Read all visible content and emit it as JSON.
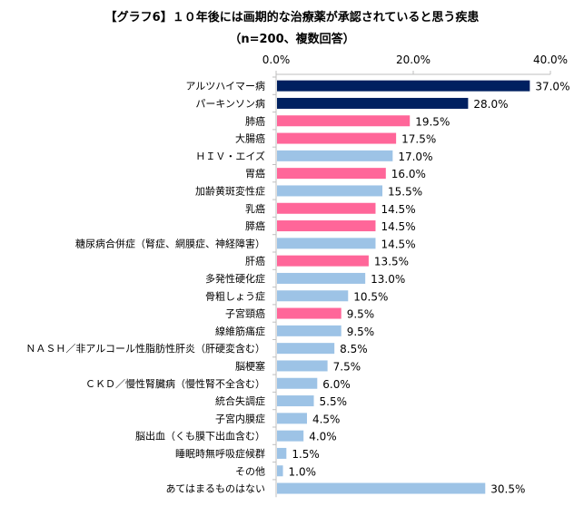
{
  "title_line1": "【グラフ6】１０年後には画期的な治療薬が承認されていると思う疾患",
  "title_line2": "（n=200、複数回答）",
  "colors": {
    "top": "#002060",
    "pink": "#FF6699",
    "blue": "#9DC3E6"
  },
  "chart_data": {
    "type": "bar",
    "orientation": "horizontal",
    "xlim": [
      0,
      40
    ],
    "xticks": [
      "0.0%",
      "20.0%",
      "40.0%"
    ],
    "xtick_values": [
      0,
      20,
      40
    ],
    "grid": false,
    "categories": [
      "アルツハイマー病",
      "パーキンソン病",
      "肺癌",
      "大腸癌",
      "ＨＩＶ・エイズ",
      "胃癌",
      "加齢黄斑変性症",
      "乳癌",
      "膵癌",
      "糖尿病合併症（腎症、網膜症、神経障害）",
      "肝癌",
      "多発性硬化症",
      "骨粗しょう症",
      "子宮頸癌",
      "線維筋痛症",
      "ＮＡＳＨ／非アルコール性脂肪性肝炎（肝硬変含む）",
      "脳梗塞",
      "ＣＫＤ／慢性腎臓病（慢性腎不全含む）",
      "統合失調症",
      "子宮内膜症",
      "脳出血（くも膜下出血含む）",
      "睡眠時無呼吸症候群",
      "その他",
      "あてはまるものはない"
    ],
    "values": [
      37.0,
      28.0,
      19.5,
      17.5,
      17.0,
      16.0,
      15.5,
      14.5,
      14.5,
      14.5,
      13.5,
      13.0,
      10.5,
      9.5,
      9.5,
      8.5,
      7.5,
      6.0,
      5.5,
      4.5,
      4.0,
      1.5,
      1.0,
      30.5
    ],
    "value_labels": [
      "37.0%",
      "28.0%",
      "19.5%",
      "17.5%",
      "17.0%",
      "16.0%",
      "15.5%",
      "14.5%",
      "14.5%",
      "14.5%",
      "13.5%",
      "13.0%",
      "10.5%",
      "9.5%",
      "9.5%",
      "8.5%",
      "7.5%",
      "6.0%",
      "5.5%",
      "4.5%",
      "4.0%",
      "1.5%",
      "1.0%",
      "30.5%"
    ],
    "bar_colors": [
      "top",
      "top",
      "pink",
      "pink",
      "blue",
      "pink",
      "blue",
      "pink",
      "pink",
      "blue",
      "pink",
      "blue",
      "blue",
      "pink",
      "blue",
      "blue",
      "blue",
      "blue",
      "blue",
      "blue",
      "blue",
      "blue",
      "blue",
      "blue"
    ]
  }
}
